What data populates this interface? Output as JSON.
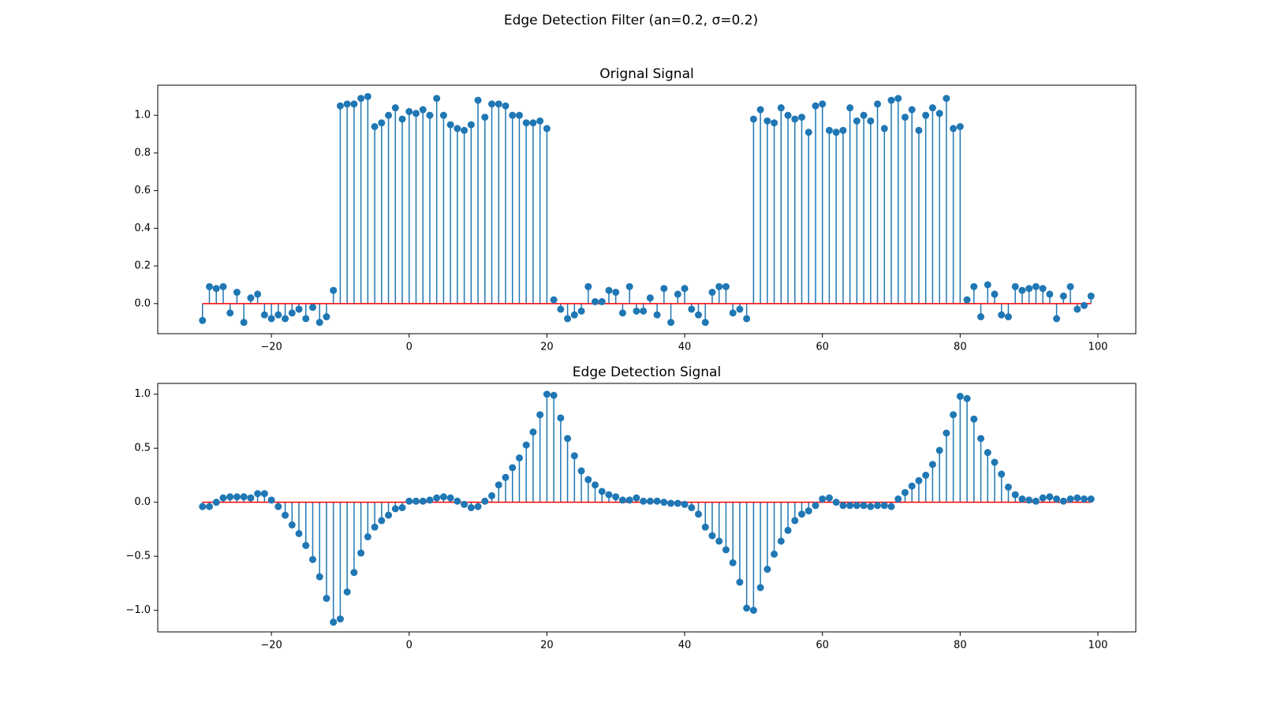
{
  "title": "Edge Detection Filter (an=0.2, σ=0.2)",
  "chart_data": [
    {
      "type": "stem",
      "title": "Orignal Signal",
      "color": "#1f77b4",
      "baseline_color": "#ff0000",
      "x": [
        -30,
        -29,
        -28,
        -27,
        -26,
        -25,
        -24,
        -23,
        -22,
        -21,
        -20,
        -19,
        -18,
        -17,
        -16,
        -15,
        -14,
        -13,
        -12,
        -11,
        -10,
        -9,
        -8,
        -7,
        -6,
        -5,
        -4,
        -3,
        -2,
        -1,
        0,
        1,
        2,
        3,
        4,
        5,
        6,
        7,
        8,
        9,
        10,
        11,
        12,
        13,
        14,
        15,
        16,
        17,
        18,
        19,
        20,
        21,
        22,
        23,
        24,
        25,
        26,
        27,
        28,
        29,
        30,
        31,
        32,
        33,
        34,
        35,
        36,
        37,
        38,
        39,
        40,
        41,
        42,
        43,
        44,
        45,
        46,
        47,
        48,
        49,
        50,
        51,
        52,
        53,
        54,
        55,
        56,
        57,
        58,
        59,
        60,
        61,
        62,
        63,
        64,
        65,
        66,
        67,
        68,
        69,
        70,
        71,
        72,
        73,
        74,
        75,
        76,
        77,
        78,
        79,
        80,
        81,
        82,
        83,
        84,
        85,
        86,
        87,
        88,
        89,
        90,
        91,
        92,
        93,
        94,
        95,
        96,
        97,
        98,
        99
      ],
      "values": [
        -0.09,
        0.09,
        0.08,
        0.09,
        -0.05,
        0.06,
        -0.1,
        0.03,
        0.05,
        -0.06,
        -0.08,
        -0.06,
        -0.08,
        -0.05,
        -0.03,
        -0.08,
        -0.02,
        -0.1,
        -0.07,
        0.07,
        1.05,
        1.06,
        1.06,
        1.09,
        1.1,
        0.94,
        0.96,
        1.0,
        1.04,
        0.98,
        1.02,
        1.01,
        1.03,
        1.0,
        1.09,
        1.0,
        0.95,
        0.93,
        0.92,
        0.95,
        1.08,
        0.99,
        1.06,
        1.06,
        1.05,
        1.0,
        1.0,
        0.96,
        0.96,
        0.97,
        0.93,
        0.02,
        -0.03,
        -0.08,
        -0.06,
        -0.04,
        0.09,
        0.01,
        0.01,
        0.07,
        0.06,
        -0.05,
        0.09,
        -0.04,
        -0.04,
        0.03,
        -0.06,
        0.08,
        -0.1,
        0.05,
        0.08,
        -0.03,
        -0.06,
        -0.1,
        0.06,
        0.09,
        0.09,
        -0.05,
        -0.03,
        -0.08,
        0.98,
        1.03,
        0.97,
        0.96,
        1.04,
        1.0,
        0.98,
        0.99,
        0.91,
        1.05,
        1.06,
        0.92,
        0.91,
        0.92,
        1.04,
        0.97,
        1.0,
        0.97,
        1.06,
        0.93,
        1.08,
        1.09,
        0.99,
        1.03,
        0.92,
        1.0,
        1.04,
        1.01,
        1.09,
        0.93,
        0.94,
        0.02,
        0.09,
        -0.07,
        0.1,
        0.05,
        -0.06,
        -0.07,
        0.09,
        0.07,
        0.08,
        0.09,
        0.08,
        0.05,
        -0.08,
        0.04,
        0.09,
        -0.03,
        -0.01,
        0.04
      ],
      "xlim": [
        -36.5,
        105.5
      ],
      "ylim": [
        -0.16,
        1.16
      ],
      "xticks": [
        {
          "value": -20,
          "label": "−20"
        },
        0,
        20,
        40,
        60,
        80,
        100
      ],
      "yticks": [
        {
          "value": 0,
          "label": "0.0"
        },
        {
          "value": 0.2,
          "label": "0.2"
        },
        {
          "value": 0.4,
          "label": "0.4"
        },
        {
          "value": 0.6,
          "label": "0.6"
        },
        {
          "value": 0.8,
          "label": "0.8"
        },
        {
          "value": 1,
          "label": "1.0"
        }
      ]
    },
    {
      "type": "stem",
      "title": "Edge Detection Signal",
      "color": "#1f77b4",
      "baseline_color": "#ff0000",
      "x": [
        -30,
        -29,
        -28,
        -27,
        -26,
        -25,
        -24,
        -23,
        -22,
        -21,
        -20,
        -19,
        -18,
        -17,
        -16,
        -15,
        -14,
        -13,
        -12,
        -11,
        -10,
        -9,
        -8,
        -7,
        -6,
        -5,
        -4,
        -3,
        -2,
        -1,
        0,
        1,
        2,
        3,
        4,
        5,
        6,
        7,
        8,
        9,
        10,
        11,
        12,
        13,
        14,
        15,
        16,
        17,
        18,
        19,
        20,
        21,
        22,
        23,
        24,
        25,
        26,
        27,
        28,
        29,
        30,
        31,
        32,
        33,
        34,
        35,
        36,
        37,
        38,
        39,
        40,
        41,
        42,
        43,
        44,
        45,
        46,
        47,
        48,
        49,
        50,
        51,
        52,
        53,
        54,
        55,
        56,
        57,
        58,
        59,
        60,
        61,
        62,
        63,
        64,
        65,
        66,
        67,
        68,
        69,
        70,
        71,
        72,
        73,
        74,
        75,
        76,
        77,
        78,
        79,
        80,
        81,
        82,
        83,
        84,
        85,
        86,
        87,
        88,
        89,
        90,
        91,
        92,
        93,
        94,
        95,
        96,
        97,
        98,
        99
      ],
      "values": [
        -0.04,
        -0.04,
        0.0,
        0.04,
        0.05,
        0.05,
        0.05,
        0.04,
        0.08,
        0.08,
        0.02,
        -0.04,
        -0.12,
        -0.21,
        -0.29,
        -0.4,
        -0.53,
        -0.69,
        -0.89,
        -1.11,
        -1.08,
        -0.83,
        -0.65,
        -0.47,
        -0.32,
        -0.23,
        -0.17,
        -0.12,
        -0.06,
        -0.05,
        0.01,
        0.01,
        0.01,
        0.02,
        0.04,
        0.05,
        0.04,
        0.01,
        -0.02,
        -0.05,
        -0.04,
        0.01,
        0.06,
        0.16,
        0.23,
        0.32,
        0.41,
        0.53,
        0.65,
        0.81,
        1.0,
        0.99,
        0.78,
        0.59,
        0.43,
        0.29,
        0.21,
        0.16,
        0.1,
        0.07,
        0.05,
        0.02,
        0.02,
        0.04,
        0.01,
        0.01,
        0.01,
        0.0,
        -0.01,
        -0.01,
        -0.02,
        -0.05,
        -0.11,
        -0.23,
        -0.31,
        -0.36,
        -0.44,
        -0.56,
        -0.74,
        -0.98,
        -1.0,
        -0.79,
        -0.62,
        -0.48,
        -0.36,
        -0.26,
        -0.17,
        -0.11,
        -0.08,
        -0.03,
        0.03,
        0.04,
        0.0,
        -0.03,
        -0.03,
        -0.03,
        -0.03,
        -0.04,
        -0.03,
        -0.03,
        -0.04,
        0.03,
        0.09,
        0.15,
        0.2,
        0.25,
        0.35,
        0.48,
        0.64,
        0.81,
        0.98,
        0.96,
        0.77,
        0.59,
        0.46,
        0.37,
        0.26,
        0.14,
        0.07,
        0.03,
        0.02,
        0.01,
        0.04,
        0.05,
        0.03,
        0.01,
        0.03,
        0.04,
        0.03,
        0.03
      ],
      "xlim": [
        -36.5,
        105.5
      ],
      "ylim": [
        -1.2,
        1.1
      ],
      "xticks": [
        {
          "value": -20,
          "label": "−20"
        },
        0,
        20,
        40,
        60,
        80,
        100
      ],
      "yticks": [
        {
          "value": -1,
          "label": "−1.0"
        },
        {
          "value": -0.5,
          "label": "−0.5"
        },
        {
          "value": 0,
          "label": "0.0"
        },
        {
          "value": 0.5,
          "label": "0.5"
        },
        {
          "value": 1,
          "label": "1.0"
        }
      ]
    }
  ]
}
